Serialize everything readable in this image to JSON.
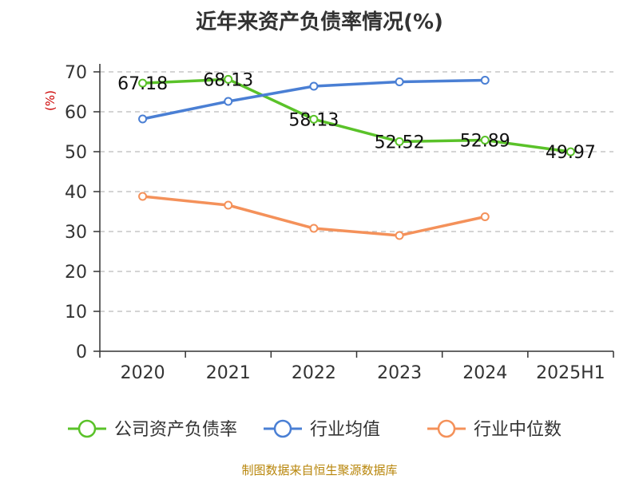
{
  "chart_data": {
    "type": "line",
    "title": "近年来资产负债率情况(%)",
    "ylabel": "(%)",
    "xlabel": "",
    "categories": [
      "2020",
      "2021",
      "2022",
      "2023",
      "2024",
      "2025H1"
    ],
    "ylim": [
      0,
      70
    ],
    "yticks": [
      0,
      10,
      20,
      30,
      40,
      50,
      60,
      70
    ],
    "grid": true,
    "legend_position": "bottom",
    "series": [
      {
        "name": "公司资产负债率",
        "color": "#5ac229",
        "values": [
          67.18,
          68.13,
          58.13,
          52.52,
          52.89,
          49.97
        ],
        "labels": [
          "67.18",
          "68.13",
          "58.13",
          "52.52",
          "52.89",
          "49.97"
        ]
      },
      {
        "name": "行业均值",
        "color": "#4a7fd4",
        "values": [
          58.2,
          62.6,
          66.4,
          67.5,
          67.9,
          null
        ]
      },
      {
        "name": "行业中位数",
        "color": "#f4915a",
        "values": [
          38.8,
          36.6,
          30.8,
          29.0,
          33.7,
          null
        ]
      }
    ]
  },
  "source": "制图数据来自恒生聚源数据库"
}
